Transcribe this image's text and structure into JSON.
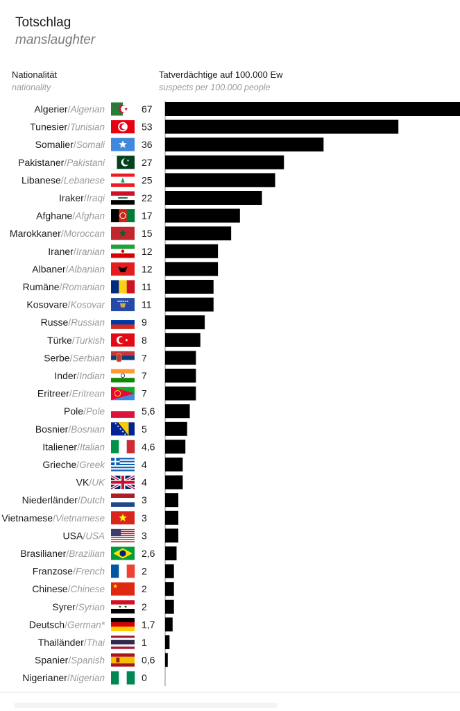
{
  "header": {
    "title": "Totschlag",
    "subtitle": "manslaughter",
    "col_nat_de": "Nationalität",
    "col_nat_en": "nationality",
    "col_val_de": "Tatverdächtige auf 100.000 Ew",
    "col_val_en": "suspects per 100.000 people"
  },
  "chart_data": {
    "type": "bar",
    "orientation": "horizontal",
    "title": "Totschlag",
    "subtitle": "manslaughter",
    "xlabel": "Tatverdächtige auf 100.000 Ew",
    "ylabel": "Nationalität",
    "xlim": [
      0,
      67
    ],
    "grid": false,
    "categories": [
      {
        "de": "Algerier",
        "en": "Algerian",
        "value": 67,
        "label": "67",
        "flag": "algeria-flag"
      },
      {
        "de": "Tunesier",
        "en": "Tunisian",
        "value": 53,
        "label": "53",
        "flag": "tunisia-flag"
      },
      {
        "de": "Somalier",
        "en": "Somali",
        "value": 36,
        "label": "36",
        "flag": "somalia-flag"
      },
      {
        "de": "Pakistaner",
        "en": "Pakistani",
        "value": 27,
        "label": "27",
        "flag": "pakistan-flag"
      },
      {
        "de": "Libanese",
        "en": "Lebanese",
        "value": 25,
        "label": "25",
        "flag": "lebanon-flag"
      },
      {
        "de": "Iraker",
        "en": "Iraqi",
        "value": 22,
        "label": "22",
        "flag": "iraq-flag"
      },
      {
        "de": "Afghane",
        "en": "Afghan",
        "value": 17,
        "label": "17",
        "flag": "afghanistan-flag"
      },
      {
        "de": "Marokkaner",
        "en": "Moroccan",
        "value": 15,
        "label": "15",
        "flag": "morocco-flag"
      },
      {
        "de": "Iraner",
        "en": "Iranian",
        "value": 12,
        "label": "12",
        "flag": "iran-flag"
      },
      {
        "de": "Albaner",
        "en": "Albanian",
        "value": 12,
        "label": "12",
        "flag": "albania-flag"
      },
      {
        "de": "Rumäne",
        "en": "Romanian",
        "value": 11,
        "label": "11",
        "flag": "romania-flag"
      },
      {
        "de": "Kosovare",
        "en": "Kosovar",
        "value": 11,
        "label": "11",
        "flag": "kosovo-flag"
      },
      {
        "de": "Russe",
        "en": "Russian",
        "value": 9,
        "label": "9",
        "flag": "russia-flag"
      },
      {
        "de": "Türke",
        "en": "Turkish",
        "value": 8,
        "label": "8",
        "flag": "turkey-flag"
      },
      {
        "de": "Serbe",
        "en": "Serbian",
        "value": 7,
        "label": "7",
        "flag": "serbia-flag"
      },
      {
        "de": "Inder",
        "en": "Indian",
        "value": 7,
        "label": "7",
        "flag": "india-flag"
      },
      {
        "de": "Eritreer",
        "en": "Eritrean",
        "value": 7,
        "label": "7",
        "flag": "eritrea-flag"
      },
      {
        "de": "Pole",
        "en": "Pole",
        "value": 5.6,
        "label": "5,6",
        "flag": "poland-flag"
      },
      {
        "de": "Bosnier",
        "en": "Bosnian",
        "value": 5,
        "label": "5",
        "flag": "bosnia-flag"
      },
      {
        "de": "Italiener",
        "en": "Italian",
        "value": 4.6,
        "label": "4,6",
        "flag": "italy-flag"
      },
      {
        "de": "Grieche",
        "en": "Greek",
        "value": 4,
        "label": "4",
        "flag": "greece-flag"
      },
      {
        "de": "VK",
        "en": "UK",
        "value": 4,
        "label": "4",
        "flag": "uk-flag"
      },
      {
        "de": "Niederländer",
        "en": "Dutch",
        "value": 3,
        "label": "3",
        "flag": "netherlands-flag"
      },
      {
        "de": "Vietnamese",
        "en": "Vietnamese",
        "value": 3,
        "label": "3",
        "flag": "vietnam-flag"
      },
      {
        "de": "USA",
        "en": "USA",
        "value": 3,
        "label": "3",
        "flag": "usa-flag"
      },
      {
        "de": "Brasilianer",
        "en": "Brazilian",
        "value": 2.6,
        "label": "2,6",
        "flag": "brazil-flag"
      },
      {
        "de": "Franzose",
        "en": "French",
        "value": 2,
        "label": "2",
        "flag": "france-flag"
      },
      {
        "de": "Chinese",
        "en": "Chinese",
        "value": 2,
        "label": "2",
        "flag": "china-flag"
      },
      {
        "de": "Syrer",
        "en": "Syrian",
        "value": 2,
        "label": "2",
        "flag": "syria-flag"
      },
      {
        "de": "Deutsch",
        "en": "German*",
        "value": 1.7,
        "label": "1,7",
        "flag": "germany-flag"
      },
      {
        "de": "Thailänder",
        "en": "Thai",
        "value": 1,
        "label": "1",
        "flag": "thailand-flag"
      },
      {
        "de": "Spanier",
        "en": "Spanish",
        "value": 0.6,
        "label": "0,6",
        "flag": "spain-flag"
      },
      {
        "de": "Nigerianer",
        "en": "Nigerian",
        "value": 0,
        "label": "0",
        "flag": "nigeria-flag"
      }
    ],
    "colors": {
      "bar": "#000000",
      "label_de": "#1a1a1a",
      "label_en": "#9a9a9a",
      "axis": "#888888"
    }
  }
}
